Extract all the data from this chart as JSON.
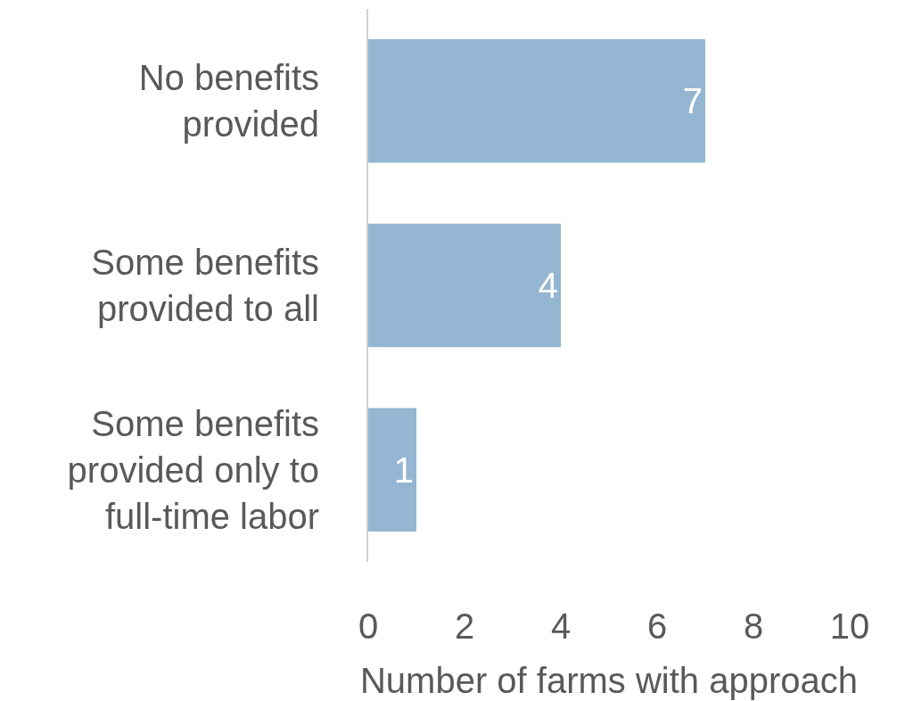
{
  "chart_data": {
    "type": "bar",
    "orientation": "horizontal",
    "xlabel": "Number of farms with approach",
    "categories": [
      "No benefits provided",
      "Some benefits provided to all",
      "Some benefits provided only to full-time labor"
    ],
    "values": [
      7,
      4,
      1
    ],
    "color": "#95b6d3",
    "data_labels": true,
    "xlim": [
      0,
      10
    ],
    "xticks": [
      0,
      2,
      4,
      6,
      8,
      10
    ],
    "grid": false,
    "legend": false
  }
}
